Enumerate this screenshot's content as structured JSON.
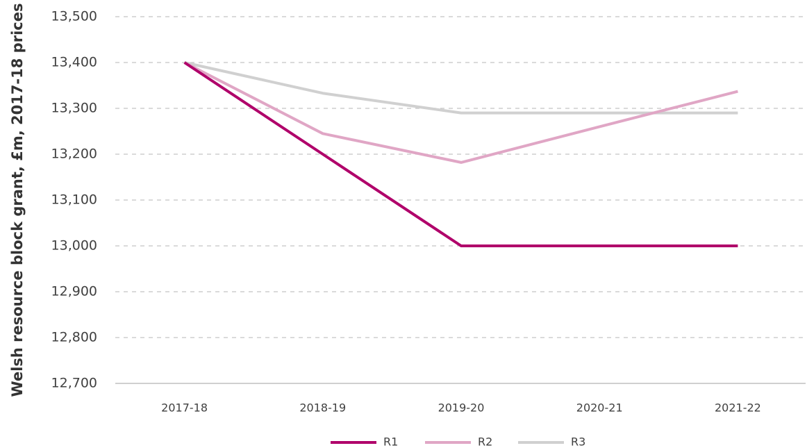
{
  "chart_data": {
    "type": "line",
    "y_label": "Welsh resource block grant, £m, 2017-18 prices",
    "categories": [
      "2017-18",
      "2018-19",
      "2019-20",
      "2020-21",
      "2021-22"
    ],
    "series": [
      {
        "name": "R1",
        "color": "#b0006a",
        "values": [
          13400,
          13200,
          13000,
          13000,
          13000
        ]
      },
      {
        "name": "R2",
        "color": "#e0a6c5",
        "values": [
          13400,
          13245,
          13182,
          13260,
          13337
        ]
      },
      {
        "name": "R3",
        "color": "#d0d0d0",
        "values": [
          13400,
          13333,
          13290,
          13290,
          13290
        ]
      }
    ],
    "ylim": [
      12700,
      13500
    ],
    "yticks": [
      {
        "value": 12700,
        "label": "12,700"
      },
      {
        "value": 12800,
        "label": "12,800"
      },
      {
        "value": 12900,
        "label": "12,900"
      },
      {
        "value": 13000,
        "label": "13,000"
      },
      {
        "value": 13100,
        "label": "13,100"
      },
      {
        "value": 13200,
        "label": "13,200"
      },
      {
        "value": 13300,
        "label": "13,300"
      },
      {
        "value": 13400,
        "label": "13,400"
      },
      {
        "value": 13500,
        "label": "13,500"
      }
    ],
    "grid": true,
    "legend": "bottom"
  }
}
